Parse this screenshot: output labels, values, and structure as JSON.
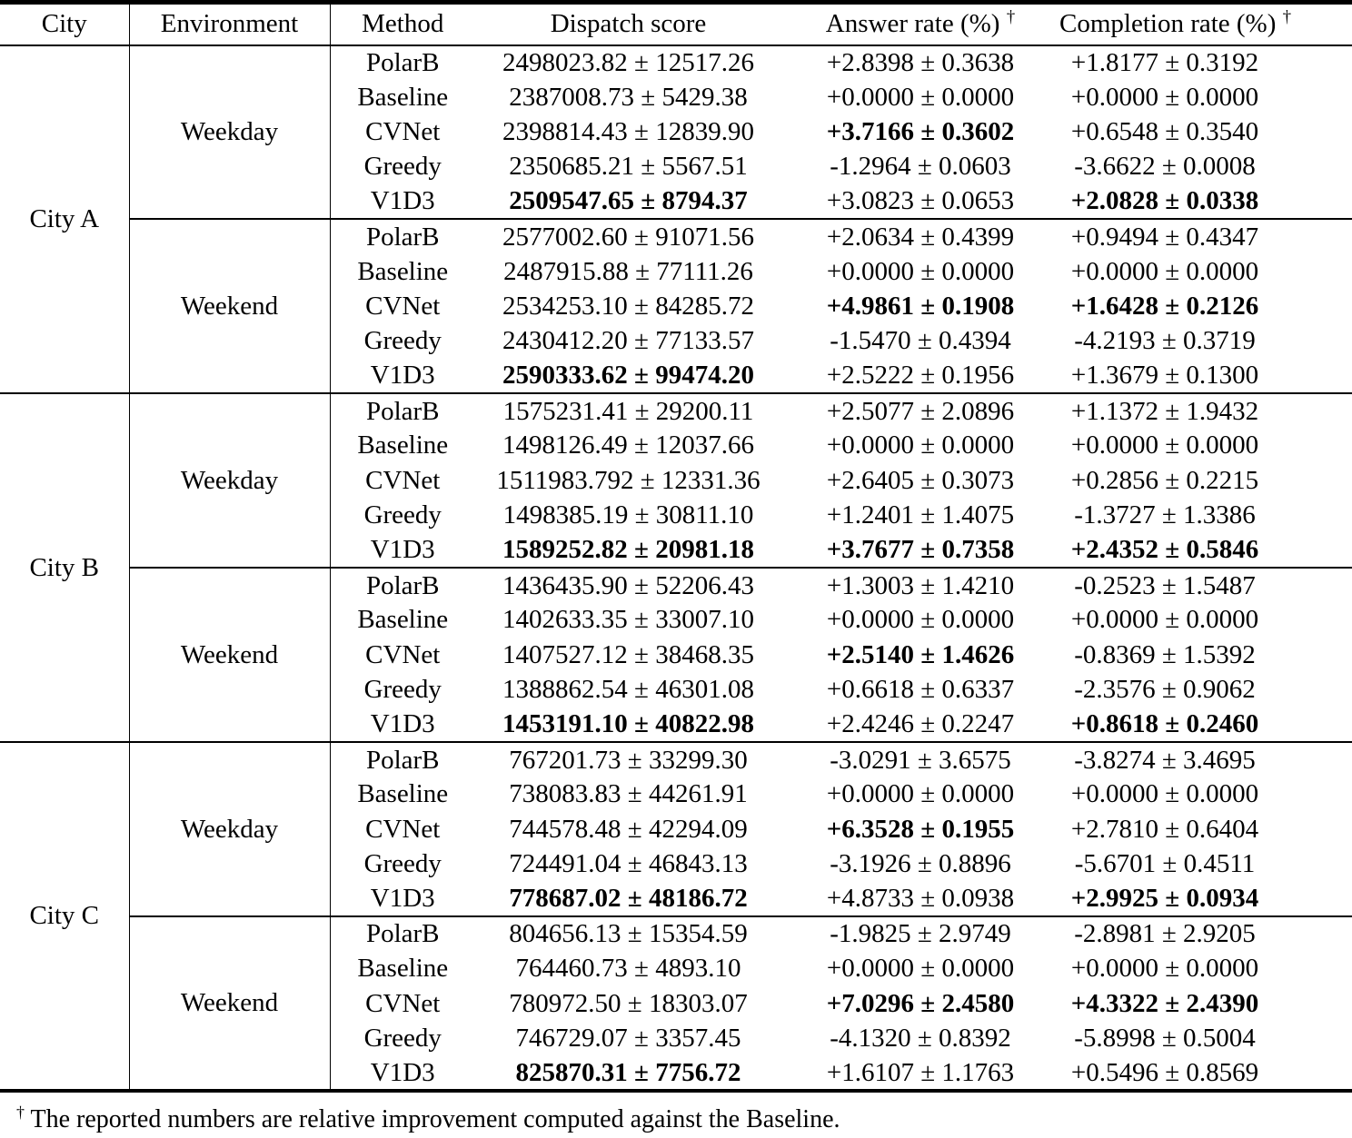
{
  "table": {
    "columns": {
      "city": "City",
      "environment": "Environment",
      "method": "Method",
      "dispatch": "Dispatch score",
      "answer": "Answer rate (%)",
      "completion": "Completion rate (%)",
      "dagger": "†"
    },
    "groups": [
      {
        "city": "City A",
        "blocks": [
          {
            "environment": "Weekday",
            "rows": [
              {
                "method": "PolarB",
                "dispatch": "2498023.82 ± 12517.26",
                "answer": "+2.8398 ± 0.3638",
                "completion": "+1.8177 ± 0.3192",
                "bold": []
              },
              {
                "method": "Baseline",
                "dispatch": "2387008.73 ± 5429.38",
                "answer": "+0.0000 ± 0.0000",
                "completion": "+0.0000 ± 0.0000",
                "bold": []
              },
              {
                "method": "CVNet",
                "dispatch": "2398814.43 ± 12839.90",
                "answer": "+3.7166 ± 0.3602",
                "completion": "+0.6548 ± 0.3540",
                "bold": [
                  "answer"
                ]
              },
              {
                "method": "Greedy",
                "dispatch": "2350685.21 ± 5567.51",
                "answer": "-1.2964 ± 0.0603",
                "completion": "-3.6622 ± 0.0008",
                "bold": []
              },
              {
                "method": "V1D3",
                "dispatch": "2509547.65 ± 8794.37",
                "answer": "+3.0823 ± 0.0653",
                "completion": "+2.0828 ± 0.0338",
                "bold": [
                  "dispatch",
                  "completion"
                ]
              }
            ]
          },
          {
            "environment": "Weekend",
            "rows": [
              {
                "method": "PolarB",
                "dispatch": "2577002.60 ± 91071.56",
                "answer": "+2.0634 ± 0.4399",
                "completion": "+0.9494 ± 0.4347",
                "bold": []
              },
              {
                "method": "Baseline",
                "dispatch": "2487915.88 ± 77111.26",
                "answer": "+0.0000 ± 0.0000",
                "completion": "+0.0000 ± 0.0000",
                "bold": []
              },
              {
                "method": "CVNet",
                "dispatch": "2534253.10 ± 84285.72",
                "answer": "+4.9861 ± 0.1908",
                "completion": "+1.6428 ± 0.2126",
                "bold": [
                  "answer",
                  "completion"
                ]
              },
              {
                "method": "Greedy",
                "dispatch": "2430412.20 ± 77133.57",
                "answer": "-1.5470 ± 0.4394",
                "completion": "-4.2193 ± 0.3719",
                "bold": []
              },
              {
                "method": "V1D3",
                "dispatch": "2590333.62 ± 99474.20",
                "answer": "+2.5222 ± 0.1956",
                "completion": "+1.3679 ± 0.1300",
                "bold": [
                  "dispatch"
                ]
              }
            ]
          }
        ]
      },
      {
        "city": "City B",
        "blocks": [
          {
            "environment": "Weekday",
            "rows": [
              {
                "method": "PolarB",
                "dispatch": "1575231.41 ± 29200.11",
                "answer": "+2.5077 ± 2.0896",
                "completion": "+1.1372 ± 1.9432",
                "bold": []
              },
              {
                "method": "Baseline",
                "dispatch": "1498126.49 ± 12037.66",
                "answer": "+0.0000 ± 0.0000",
                "completion": "+0.0000 ± 0.0000",
                "bold": []
              },
              {
                "method": "CVNet",
                "dispatch": "1511983.792 ± 12331.36",
                "answer": "+2.6405 ± 0.3073",
                "completion": "+0.2856 ± 0.2215",
                "bold": []
              },
              {
                "method": "Greedy",
                "dispatch": "1498385.19 ± 30811.10",
                "answer": "+1.2401 ± 1.4075",
                "completion": "-1.3727 ± 1.3386",
                "bold": []
              },
              {
                "method": "V1D3",
                "dispatch": "1589252.82 ± 20981.18",
                "answer": "+3.7677 ± 0.7358",
                "completion": "+2.4352 ± 0.5846",
                "bold": [
                  "dispatch",
                  "answer",
                  "completion"
                ]
              }
            ]
          },
          {
            "environment": "Weekend",
            "rows": [
              {
                "method": "PolarB",
                "dispatch": "1436435.90 ± 52206.43",
                "answer": "+1.3003 ± 1.4210",
                "completion": "-0.2523 ± 1.5487",
                "bold": []
              },
              {
                "method": "Baseline",
                "dispatch": "1402633.35 ± 33007.10",
                "answer": "+0.0000 ± 0.0000",
                "completion": "+0.0000 ± 0.0000",
                "bold": []
              },
              {
                "method": "CVNet",
                "dispatch": "1407527.12 ± 38468.35",
                "answer": "+2.5140 ± 1.4626",
                "completion": "-0.8369 ± 1.5392",
                "bold": [
                  "answer"
                ]
              },
              {
                "method": "Greedy",
                "dispatch": "1388862.54 ± 46301.08",
                "answer": "+0.6618 ± 0.6337",
                "completion": "-2.3576 ± 0.9062",
                "bold": []
              },
              {
                "method": "V1D3",
                "dispatch": "1453191.10 ± 40822.98",
                "answer": "+2.4246 ± 0.2247",
                "completion": "+0.8618 ± 0.2460",
                "bold": [
                  "dispatch",
                  "completion"
                ]
              }
            ]
          }
        ]
      },
      {
        "city": "City C",
        "blocks": [
          {
            "environment": "Weekday",
            "rows": [
              {
                "method": "PolarB",
                "dispatch": "767201.73 ± 33299.30",
                "answer": "-3.0291 ± 3.6575",
                "completion": "-3.8274 ± 3.4695",
                "bold": []
              },
              {
                "method": "Baseline",
                "dispatch": "738083.83 ± 44261.91",
                "answer": "+0.0000 ± 0.0000",
                "completion": "+0.0000 ± 0.0000",
                "bold": []
              },
              {
                "method": "CVNet",
                "dispatch": "744578.48 ± 42294.09",
                "answer": "+6.3528 ± 0.1955",
                "completion": "+2.7810 ± 0.6404",
                "bold": [
                  "answer"
                ]
              },
              {
                "method": "Greedy",
                "dispatch": "724491.04 ± 46843.13",
                "answer": "-3.1926 ± 0.8896",
                "completion": "-5.6701 ± 0.4511",
                "bold": []
              },
              {
                "method": "V1D3",
                "dispatch": "778687.02 ± 48186.72",
                "answer": "+4.8733 ± 0.0938",
                "completion": "+2.9925 ± 0.0934",
                "bold": [
                  "dispatch",
                  "completion"
                ]
              }
            ]
          },
          {
            "environment": "Weekend",
            "rows": [
              {
                "method": "PolarB",
                "dispatch": "804656.13 ± 15354.59",
                "answer": "-1.9825 ± 2.9749",
                "completion": "-2.8981 ± 2.9205",
                "bold": []
              },
              {
                "method": "Baseline",
                "dispatch": "764460.73 ± 4893.10",
                "answer": "+0.0000 ± 0.0000",
                "completion": "+0.0000 ± 0.0000",
                "bold": []
              },
              {
                "method": "CVNet",
                "dispatch": "780972.50 ± 18303.07",
                "answer": "+7.0296 ± 2.4580",
                "completion": "+4.3322 ± 2.4390",
                "bold": [
                  "answer",
                  "completion"
                ]
              },
              {
                "method": "Greedy",
                "dispatch": "746729.07 ± 3357.45",
                "answer": "-4.1320 ± 0.8392",
                "completion": "-5.8998 ± 0.5004",
                "bold": []
              },
              {
                "method": "V1D3",
                "dispatch": "825870.31 ± 7756.72",
                "answer": "+1.6107 ± 1.1763",
                "completion": "+0.5496 ± 0.8569",
                "bold": [
                  "dispatch"
                ]
              }
            ]
          }
        ]
      }
    ]
  },
  "footnote": {
    "marker": "†",
    "text": "The reported numbers are relative improvement computed against the Baseline."
  }
}
